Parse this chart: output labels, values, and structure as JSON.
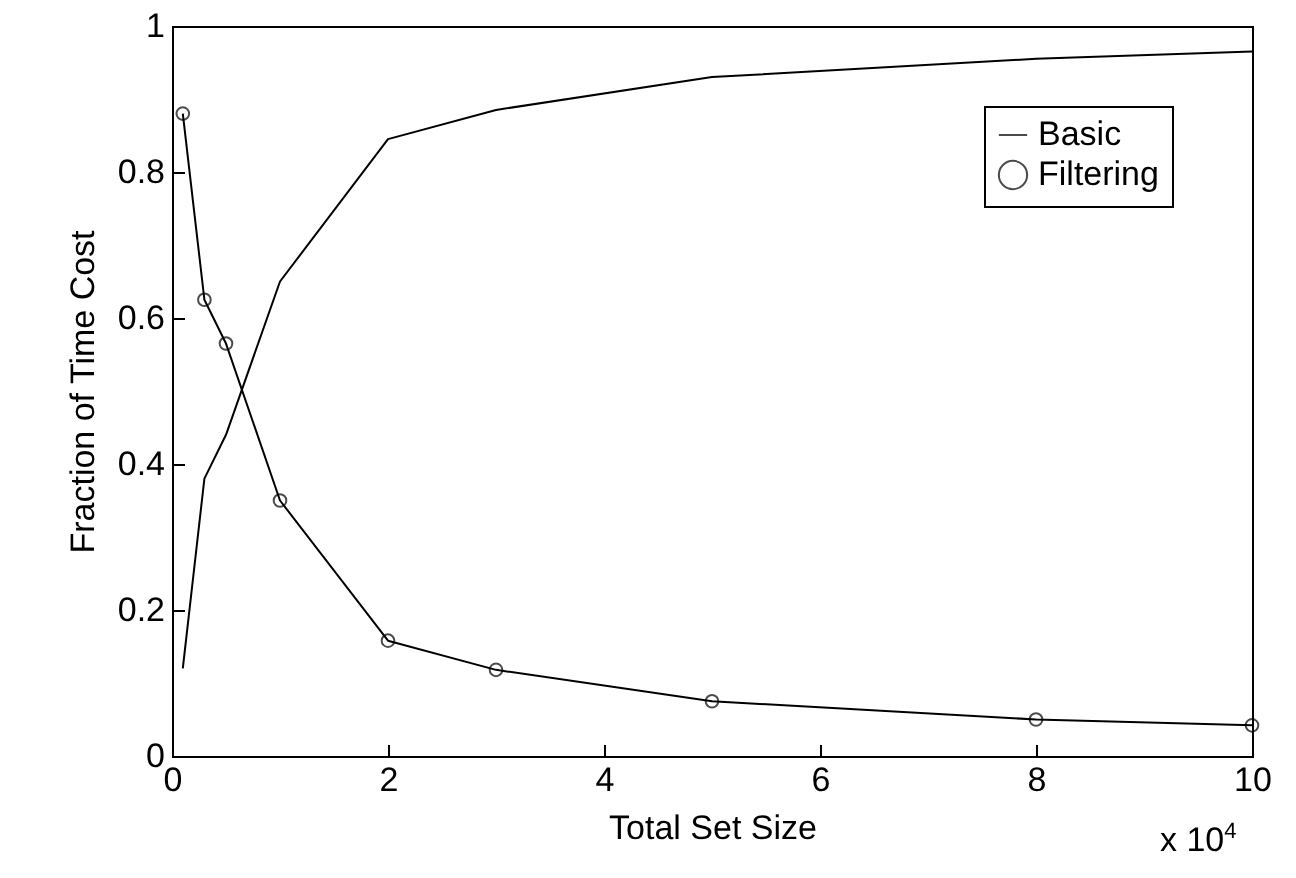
{
  "chart_data": {
    "type": "line",
    "xlabel": "Total Set Size",
    "ylabel": "Fraction of Time Cost",
    "annotations": [
      "x 10$^{4}$"
    ],
    "x": [
      0.1,
      0.3,
      0.5,
      1,
      2,
      3,
      5,
      8,
      10
    ],
    "series": [
      {
        "name": "Basic",
        "color": "#000000",
        "marker": "none",
        "values": [
          0.12,
          0.38,
          0.44,
          0.65,
          0.845,
          0.885,
          0.93,
          0.955,
          0.965
        ]
      },
      {
        "name": "Filtering",
        "color": "#000000",
        "marker": "circle",
        "values": [
          0.88,
          0.625,
          0.565,
          0.35,
          0.158,
          0.118,
          0.075,
          0.05,
          0.042
        ]
      }
    ],
    "xlim": [
      0,
      10
    ],
    "xticks": [
      0,
      2,
      4,
      6,
      8,
      10
    ],
    "ylim": [
      0,
      1
    ],
    "yticks": [
      0,
      0.2,
      0.4,
      0.6,
      0.8,
      1
    ],
    "grid": false,
    "legend": "top right",
    "line_style": "solid"
  }
}
